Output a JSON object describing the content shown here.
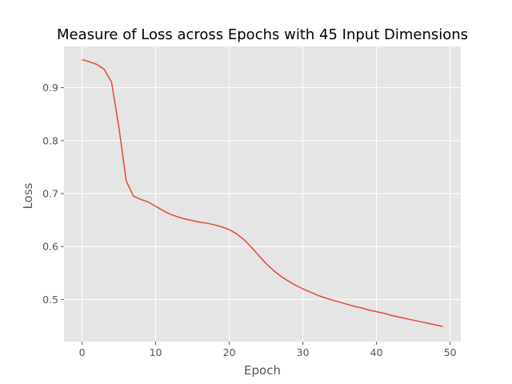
{
  "chart_data": {
    "type": "line",
    "title": "Measure of Loss across Epochs with 45 Input Dimensions",
    "xlabel": "Epoch",
    "ylabel": "Loss",
    "xlim": [
      -2.45,
      51.45
    ],
    "ylim": [
      0.4205,
      0.978
    ],
    "xticks": [
      0,
      10,
      20,
      30,
      40,
      50
    ],
    "yticks": [
      0.5,
      0.6,
      0.7,
      0.8,
      0.9
    ],
    "xtick_labels": [
      "0",
      "10",
      "20",
      "30",
      "40",
      "50"
    ],
    "ytick_labels": [
      "0.5",
      "0.6",
      "0.7",
      "0.8",
      "0.9"
    ],
    "grid": true,
    "colors": {
      "line": "#e24a33",
      "plot_bg": "#e5e5e5",
      "grid": "#ffffff"
    },
    "series": [
      {
        "x": [
          0,
          1,
          2,
          3,
          4,
          5,
          6,
          7,
          8,
          9,
          10,
          11,
          12,
          13,
          14,
          15,
          16,
          17,
          18,
          19,
          20,
          21,
          22,
          23,
          24,
          25,
          26,
          27,
          28,
          29,
          30,
          31,
          32,
          33,
          34,
          35,
          36,
          37,
          38,
          39,
          40,
          41,
          42,
          43,
          44,
          45,
          46,
          47,
          48,
          49
        ],
        "values": [
          0.953,
          0.949,
          0.944,
          0.935,
          0.911,
          0.826,
          0.724,
          0.695,
          0.689,
          0.684,
          0.676,
          0.668,
          0.661,
          0.656,
          0.652,
          0.649,
          0.646,
          0.644,
          0.641,
          0.637,
          0.632,
          0.624,
          0.613,
          0.599,
          0.583,
          0.568,
          0.555,
          0.544,
          0.535,
          0.527,
          0.52,
          0.514,
          0.508,
          0.503,
          0.499,
          0.495,
          0.491,
          0.487,
          0.484,
          0.48,
          0.477,
          0.474,
          0.47,
          0.467,
          0.464,
          0.461,
          0.458,
          0.455,
          0.452,
          0.449
        ]
      }
    ]
  }
}
